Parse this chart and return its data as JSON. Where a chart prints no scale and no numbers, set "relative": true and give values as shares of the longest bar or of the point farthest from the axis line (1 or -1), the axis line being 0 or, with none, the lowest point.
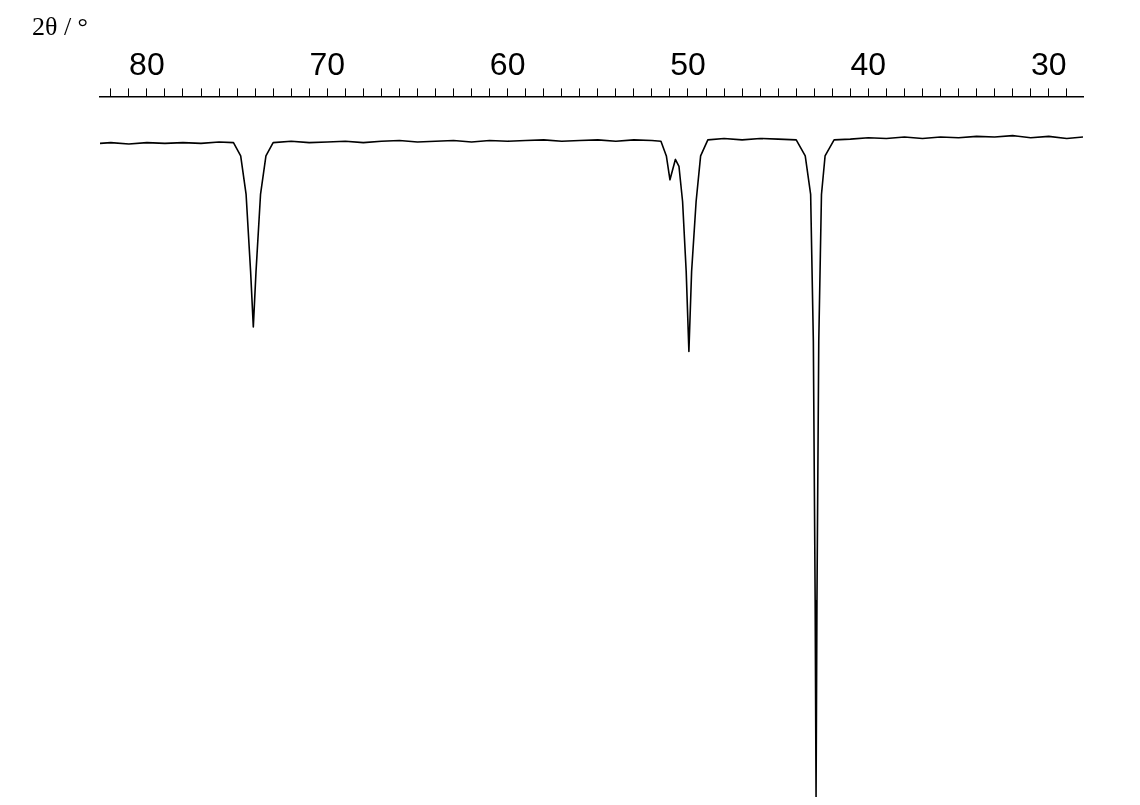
{
  "chart_data": {
    "type": "line",
    "xlabel": "2θ / °",
    "relative": true,
    "xlim": [
      82.6,
      28.1
    ],
    "xticks": [
      {
        "value": 29,
        "label": null
      },
      30,
      {
        "value": 31,
        "label": null
      },
      {
        "value": 32,
        "label": null
      },
      {
        "value": 33,
        "label": null
      },
      {
        "value": 34,
        "label": null
      },
      {
        "value": 35,
        "label": null
      },
      {
        "value": 36,
        "label": null
      },
      {
        "value": 37,
        "label": null
      },
      {
        "value": 38,
        "label": null
      },
      {
        "value": 39,
        "label": null
      },
      40,
      {
        "value": 41,
        "label": null
      },
      {
        "value": 42,
        "label": null
      },
      {
        "value": 43,
        "label": null
      },
      {
        "value": 44,
        "label": null
      },
      {
        "value": 45,
        "label": null
      },
      {
        "value": 46,
        "label": null
      },
      {
        "value": 47,
        "label": null
      },
      {
        "value": 48,
        "label": null
      },
      {
        "value": 49,
        "label": null
      },
      50,
      {
        "value": 51,
        "label": null
      },
      {
        "value": 52,
        "label": null
      },
      {
        "value": 53,
        "label": null
      },
      {
        "value": 54,
        "label": null
      },
      {
        "value": 55,
        "label": null
      },
      {
        "value": 56,
        "label": null
      },
      {
        "value": 57,
        "label": null
      },
      {
        "value": 58,
        "label": null
      },
      {
        "value": 59,
        "label": null
      },
      60,
      {
        "value": 61,
        "label": null
      },
      {
        "value": 62,
        "label": null
      },
      {
        "value": 63,
        "label": null
      },
      {
        "value": 64,
        "label": null
      },
      {
        "value": 65,
        "label": null
      },
      {
        "value": 66,
        "label": null
      },
      {
        "value": 67,
        "label": null
      },
      {
        "value": 68,
        "label": null
      },
      {
        "value": 69,
        "label": null
      },
      70,
      {
        "value": 71,
        "label": null
      },
      {
        "value": 72,
        "label": null
      },
      {
        "value": 73,
        "label": null
      },
      {
        "value": 74,
        "label": null
      },
      {
        "value": 75,
        "label": null
      },
      {
        "value": 76,
        "label": null
      },
      {
        "value": 77,
        "label": null
      },
      {
        "value": 78,
        "label": null
      },
      {
        "value": 79,
        "label": null
      },
      80,
      {
        "value": 81,
        "label": null
      },
      {
        "value": 82,
        "label": null
      }
    ],
    "series": [
      {
        "color": "#000000",
        "x": [
          28.1,
          29,
          30,
          31,
          32,
          33,
          34,
          35,
          36,
          37,
          38,
          39,
          40,
          41,
          41.9,
          42.4,
          42.6,
          42.75,
          42.85,
          42.9,
          42.95,
          43.05,
          43.2,
          43.5,
          44,
          45,
          46,
          47,
          48,
          48.9,
          49.3,
          49.55,
          49.8,
          49.95,
          50.1,
          50.3,
          50.5,
          50.7,
          51,
          51.2,
          51.5,
          52,
          53,
          54,
          55,
          56,
          57,
          58,
          59,
          60,
          61,
          62,
          63,
          64,
          65,
          66,
          67,
          68,
          69,
          70,
          71,
          72,
          73,
          73.4,
          73.7,
          73.95,
          74.1,
          74.25,
          74.5,
          74.8,
          75.2,
          76,
          77,
          78,
          79,
          80,
          81,
          82,
          82.6
        ],
        "values": [
          -0.058,
          -0.06,
          -0.057,
          -0.059,
          -0.056,
          -0.058,
          -0.057,
          -0.059,
          -0.058,
          -0.06,
          -0.058,
          -0.06,
          -0.059,
          -0.061,
          -0.062,
          -0.085,
          -0.14,
          -0.35,
          -0.72,
          -1,
          -0.72,
          -0.35,
          -0.14,
          -0.085,
          -0.062,
          -0.061,
          -0.06,
          -0.062,
          -0.06,
          -0.062,
          -0.085,
          -0.15,
          -0.25,
          -0.364,
          -0.25,
          -0.15,
          -0.1,
          -0.09,
          -0.119,
          -0.085,
          -0.064,
          -0.063,
          -0.062,
          -0.064,
          -0.062,
          -0.063,
          -0.064,
          -0.062,
          -0.063,
          -0.064,
          -0.063,
          -0.065,
          -0.063,
          -0.064,
          -0.065,
          -0.063,
          -0.064,
          -0.066,
          -0.064,
          -0.065,
          -0.066,
          -0.064,
          -0.066,
          -0.085,
          -0.14,
          -0.25,
          -0.329,
          -0.25,
          -0.14,
          -0.085,
          -0.066,
          -0.065,
          -0.067,
          -0.066,
          -0.067,
          -0.066,
          -0.068,
          -0.066,
          -0.067
        ]
      }
    ]
  }
}
